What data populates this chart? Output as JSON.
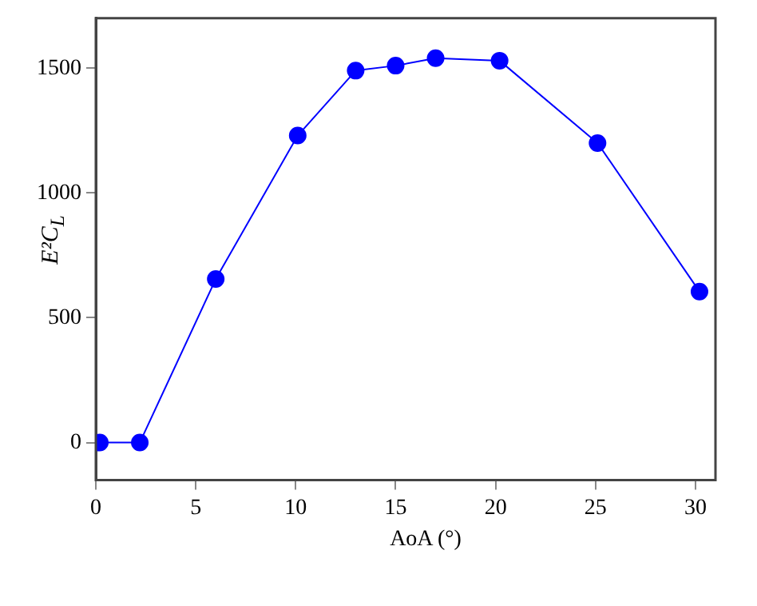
{
  "chart_data": {
    "type": "line",
    "xlabel": "AoA (°)",
    "ylabel": "E²C$_{L}$",
    "x": [
      0.2,
      2.2,
      6,
      10.1,
      13,
      15,
      17,
      20.2,
      25.1,
      30.2
    ],
    "series": [
      {
        "color": "#0000ff",
        "values": [
          0,
          0,
          655,
          1230,
          1490,
          1510,
          1540,
          1530,
          1200,
          605
        ]
      }
    ],
    "xlim": [
      0,
      31
    ],
    "xticks": [
      0,
      5,
      10,
      15,
      20,
      25,
      30
    ],
    "ylim": [
      -150,
      1700
    ],
    "yticks": [
      0,
      500,
      1000,
      1500
    ],
    "grid": false,
    "marker": "circle",
    "line_style": "solid"
  }
}
